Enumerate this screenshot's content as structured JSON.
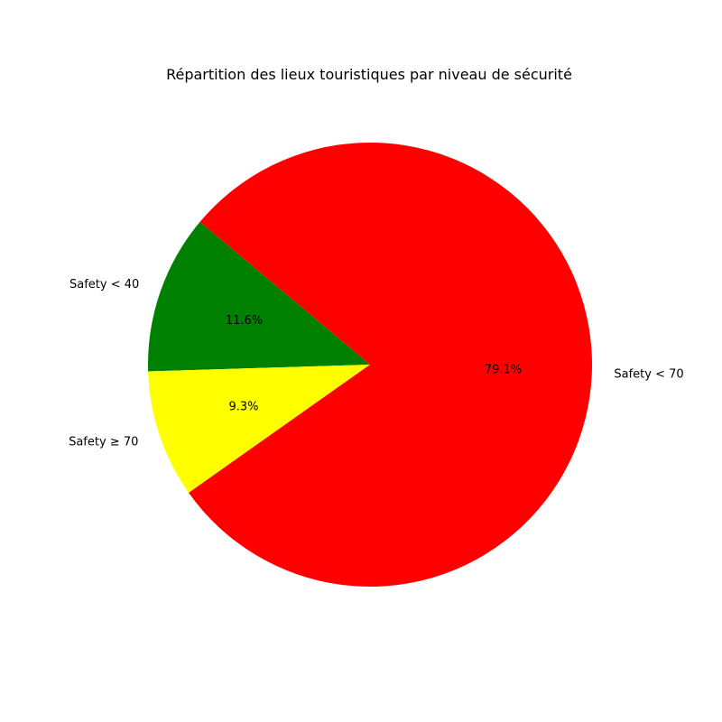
{
  "chart_data": {
    "type": "pie",
    "title": "Répartition des lieux touristiques par niveau de sécurité",
    "slices": [
      {
        "label": "Safety < 40",
        "value": 11.6,
        "pct_label": "11.6%",
        "color": "#008000"
      },
      {
        "label": "Safety ≥ 70",
        "value": 9.3,
        "pct_label": "9.3%",
        "color": "#ffff00"
      },
      {
        "label": "Safety < 70",
        "value": 79.1,
        "pct_label": "79.1%",
        "color": "#ff0000"
      }
    ],
    "start_angle_deg": 140,
    "direction": "counterclockwise"
  }
}
